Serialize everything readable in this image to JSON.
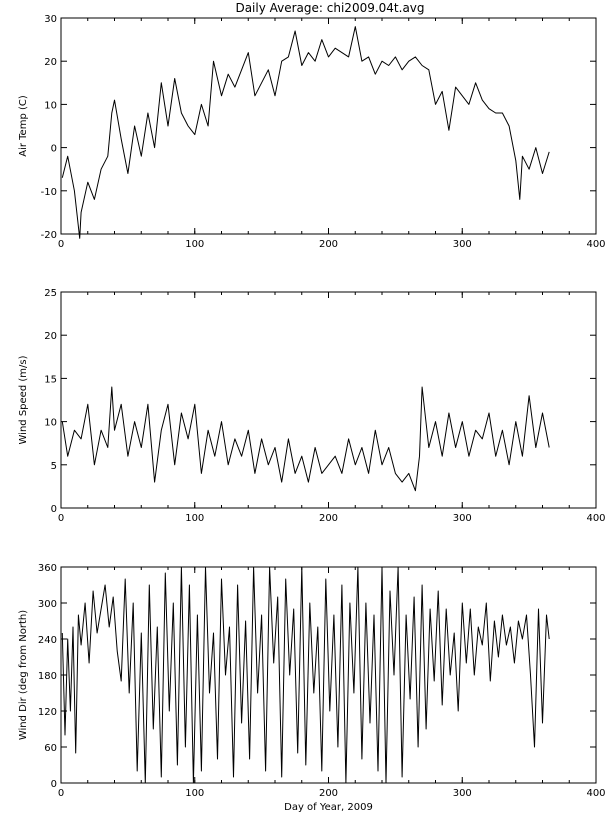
{
  "title": "Daily Average: chi2009.04t.avg",
  "chart_data": [
    {
      "type": "line",
      "ylabel": "Air Temp (C)",
      "xlabel": "",
      "xlim": [
        0,
        400
      ],
      "ylim": [
        -20,
        30
      ],
      "xticks": [
        "0",
        "100",
        "200",
        "300",
        "400"
      ],
      "yticks": [
        "-20",
        "-10",
        "0",
        "10",
        "20",
        "30"
      ],
      "grid": false,
      "series": [
        {
          "x": [
            1,
            5,
            10,
            14,
            15,
            20,
            25,
            30,
            35,
            38,
            40,
            45,
            50,
            55,
            60,
            65,
            70,
            75,
            80,
            85,
            90,
            95,
            100,
            105,
            110,
            114,
            120,
            125,
            130,
            135,
            140,
            145,
            150,
            155,
            160,
            165,
            170,
            175,
            180,
            185,
            190,
            195,
            200,
            205,
            210,
            215,
            220,
            225,
            230,
            235,
            240,
            245,
            250,
            255,
            260,
            265,
            270,
            275,
            280,
            285,
            290,
            295,
            300,
            305,
            310,
            315,
            320,
            325,
            330,
            335,
            340,
            343,
            345,
            350,
            355,
            360,
            365
          ],
          "y": [
            -7,
            -2,
            -10,
            -21,
            -15,
            -8,
            -12,
            -5,
            -2,
            8,
            11,
            2,
            -6,
            5,
            -2,
            8,
            0,
            15,
            5,
            16,
            8,
            5,
            3,
            10,
            5,
            20,
            12,
            17,
            14,
            18,
            22,
            12,
            15,
            18,
            12,
            20,
            21,
            27,
            19,
            22,
            20,
            25,
            21,
            23,
            22,
            21,
            28,
            20,
            21,
            17,
            20,
            19,
            21,
            18,
            20,
            21,
            19,
            18,
            10,
            13,
            4,
            14,
            12,
            10,
            15,
            11,
            9,
            8,
            8,
            5,
            -3,
            -12,
            -2,
            -5,
            0,
            -6,
            -1
          ]
        }
      ]
    },
    {
      "type": "line",
      "ylabel": "Wind Speed (m/s)",
      "xlabel": "",
      "xlim": [
        0,
        400
      ],
      "ylim": [
        0,
        25
      ],
      "xticks": [
        "0",
        "100",
        "200",
        "300",
        "400"
      ],
      "yticks": [
        "0",
        "5",
        "10",
        "15",
        "20",
        "25"
      ],
      "grid": false,
      "series": [
        {
          "x": [
            1,
            5,
            10,
            15,
            20,
            25,
            30,
            35,
            38,
            40,
            45,
            50,
            55,
            60,
            65,
            70,
            75,
            80,
            85,
            90,
            95,
            100,
            105,
            110,
            115,
            120,
            125,
            130,
            135,
            140,
            145,
            150,
            155,
            160,
            165,
            170,
            175,
            180,
            185,
            190,
            195,
            200,
            205,
            210,
            215,
            220,
            225,
            230,
            235,
            240,
            245,
            250,
            255,
            260,
            265,
            268,
            270,
            275,
            280,
            285,
            290,
            295,
            300,
            305,
            310,
            315,
            320,
            325,
            330,
            335,
            340,
            345,
            350,
            355,
            360,
            365
          ],
          "y": [
            10,
            6,
            9,
            8,
            12,
            5,
            9,
            7,
            14,
            9,
            12,
            6,
            10,
            7,
            12,
            3,
            9,
            12,
            5,
            11,
            8,
            12,
            4,
            9,
            6,
            10,
            5,
            8,
            6,
            9,
            4,
            8,
            5,
            7,
            3,
            8,
            4,
            6,
            3,
            7,
            4,
            5,
            6,
            4,
            8,
            5,
            7,
            4,
            9,
            5,
            7,
            4,
            3,
            4,
            2,
            6,
            14,
            7,
            10,
            6,
            11,
            7,
            10,
            6,
            9,
            8,
            11,
            6,
            9,
            5,
            10,
            6,
            13,
            7,
            11,
            7
          ]
        }
      ]
    },
    {
      "type": "line",
      "ylabel": "Wind Dir (deg from North)",
      "xlabel": "Day of Year, 2009",
      "xlim": [
        0,
        400
      ],
      "ylim": [
        0,
        360
      ],
      "xticks": [
        "0",
        "100",
        "200",
        "300",
        "400"
      ],
      "yticks": [
        "0",
        "60",
        "120",
        "180",
        "240",
        "300",
        "360"
      ],
      "grid": false,
      "series": [
        {
          "x": [
            1,
            3,
            5,
            7,
            9,
            11,
            13,
            15,
            18,
            21,
            24,
            27,
            30,
            33,
            36,
            39,
            42,
            45,
            48,
            51,
            54,
            57,
            60,
            63,
            66,
            69,
            72,
            75,
            78,
            81,
            84,
            87,
            90,
            93,
            96,
            99,
            102,
            105,
            108,
            111,
            114,
            117,
            120,
            123,
            126,
            129,
            132,
            135,
            138,
            141,
            144,
            147,
            150,
            153,
            156,
            159,
            162,
            165,
            168,
            171,
            174,
            177,
            180,
            183,
            186,
            189,
            192,
            195,
            198,
            201,
            204,
            207,
            210,
            213,
            216,
            219,
            222,
            225,
            228,
            231,
            234,
            237,
            240,
            243,
            246,
            249,
            252,
            255,
            258,
            261,
            264,
            267,
            270,
            273,
            276,
            279,
            282,
            285,
            288,
            291,
            294,
            297,
            300,
            303,
            306,
            309,
            312,
            315,
            318,
            321,
            324,
            327,
            330,
            333,
            336,
            339,
            342,
            345,
            348,
            351,
            354,
            357,
            360,
            363,
            365
          ],
          "y": [
            250,
            80,
            240,
            120,
            260,
            50,
            280,
            230,
            300,
            200,
            320,
            250,
            290,
            330,
            260,
            310,
            220,
            170,
            340,
            150,
            300,
            20,
            250,
            0,
            330,
            90,
            260,
            10,
            350,
            120,
            300,
            30,
            360,
            60,
            330,
            0,
            280,
            20,
            360,
            150,
            250,
            40,
            340,
            180,
            260,
            10,
            330,
            100,
            270,
            40,
            360,
            150,
            280,
            20,
            360,
            200,
            310,
            10,
            340,
            180,
            290,
            50,
            360,
            30,
            300,
            150,
            260,
            20,
            340,
            120,
            280,
            60,
            330,
            0,
            300,
            150,
            360,
            40,
            300,
            100,
            280,
            20,
            360,
            0,
            320,
            180,
            360,
            10,
            280,
            140,
            310,
            60,
            330,
            90,
            290,
            170,
            320,
            130,
            290,
            180,
            250,
            120,
            300,
            200,
            290,
            180,
            260,
            230,
            300,
            170,
            270,
            210,
            280,
            230,
            260,
            200,
            270,
            240,
            280,
            180,
            60,
            290,
            100,
            280,
            240
          ]
        }
      ]
    }
  ]
}
